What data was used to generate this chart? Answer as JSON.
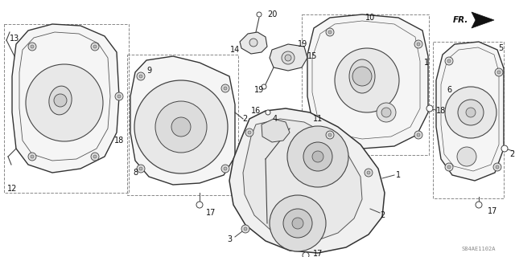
{
  "bg_color": "#ffffff",
  "line_color": "#333333",
  "catalog_code": "S84AE1102A",
  "fr_text": "FR.",
  "label_fontsize": 7.0,
  "small_fontsize": 5.5,
  "part_fill": "#f0f0f0",
  "part_edge": "#444444",
  "gasket_color": "#555555",
  "bolt_fill": "#cccccc",
  "bolt_edge": "#444444"
}
